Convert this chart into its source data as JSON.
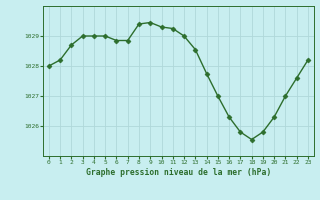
{
  "x": [
    0,
    1,
    2,
    3,
    4,
    5,
    6,
    7,
    8,
    9,
    10,
    11,
    12,
    13,
    14,
    15,
    16,
    17,
    18,
    19,
    20,
    21,
    22,
    23
  ],
  "y": [
    1028.0,
    1028.2,
    1028.7,
    1029.0,
    1029.0,
    1029.0,
    1028.85,
    1028.85,
    1029.4,
    1029.45,
    1029.3,
    1029.25,
    1029.0,
    1028.55,
    1027.75,
    1027.0,
    1026.3,
    1025.8,
    1025.55,
    1025.8,
    1026.3,
    1027.0,
    1027.6,
    1028.2
  ],
  "line_color": "#2d6e2d",
  "marker_color": "#2d6e2d",
  "bg_color": "#c8eef0",
  "grid_color": "#b0d8da",
  "xlabel": "Graphe pression niveau de la mer (hPa)",
  "xlabel_color": "#2d6e2d",
  "tick_color": "#2d6e2d",
  "axis_color": "#2d6e2d",
  "ylim": [
    1025.0,
    1030.0
  ],
  "yticks": [
    1026,
    1027,
    1028,
    1029
  ],
  "xticks": [
    0,
    1,
    2,
    3,
    4,
    5,
    6,
    7,
    8,
    9,
    10,
    11,
    12,
    13,
    14,
    15,
    16,
    17,
    18,
    19,
    20,
    21,
    22,
    23
  ]
}
